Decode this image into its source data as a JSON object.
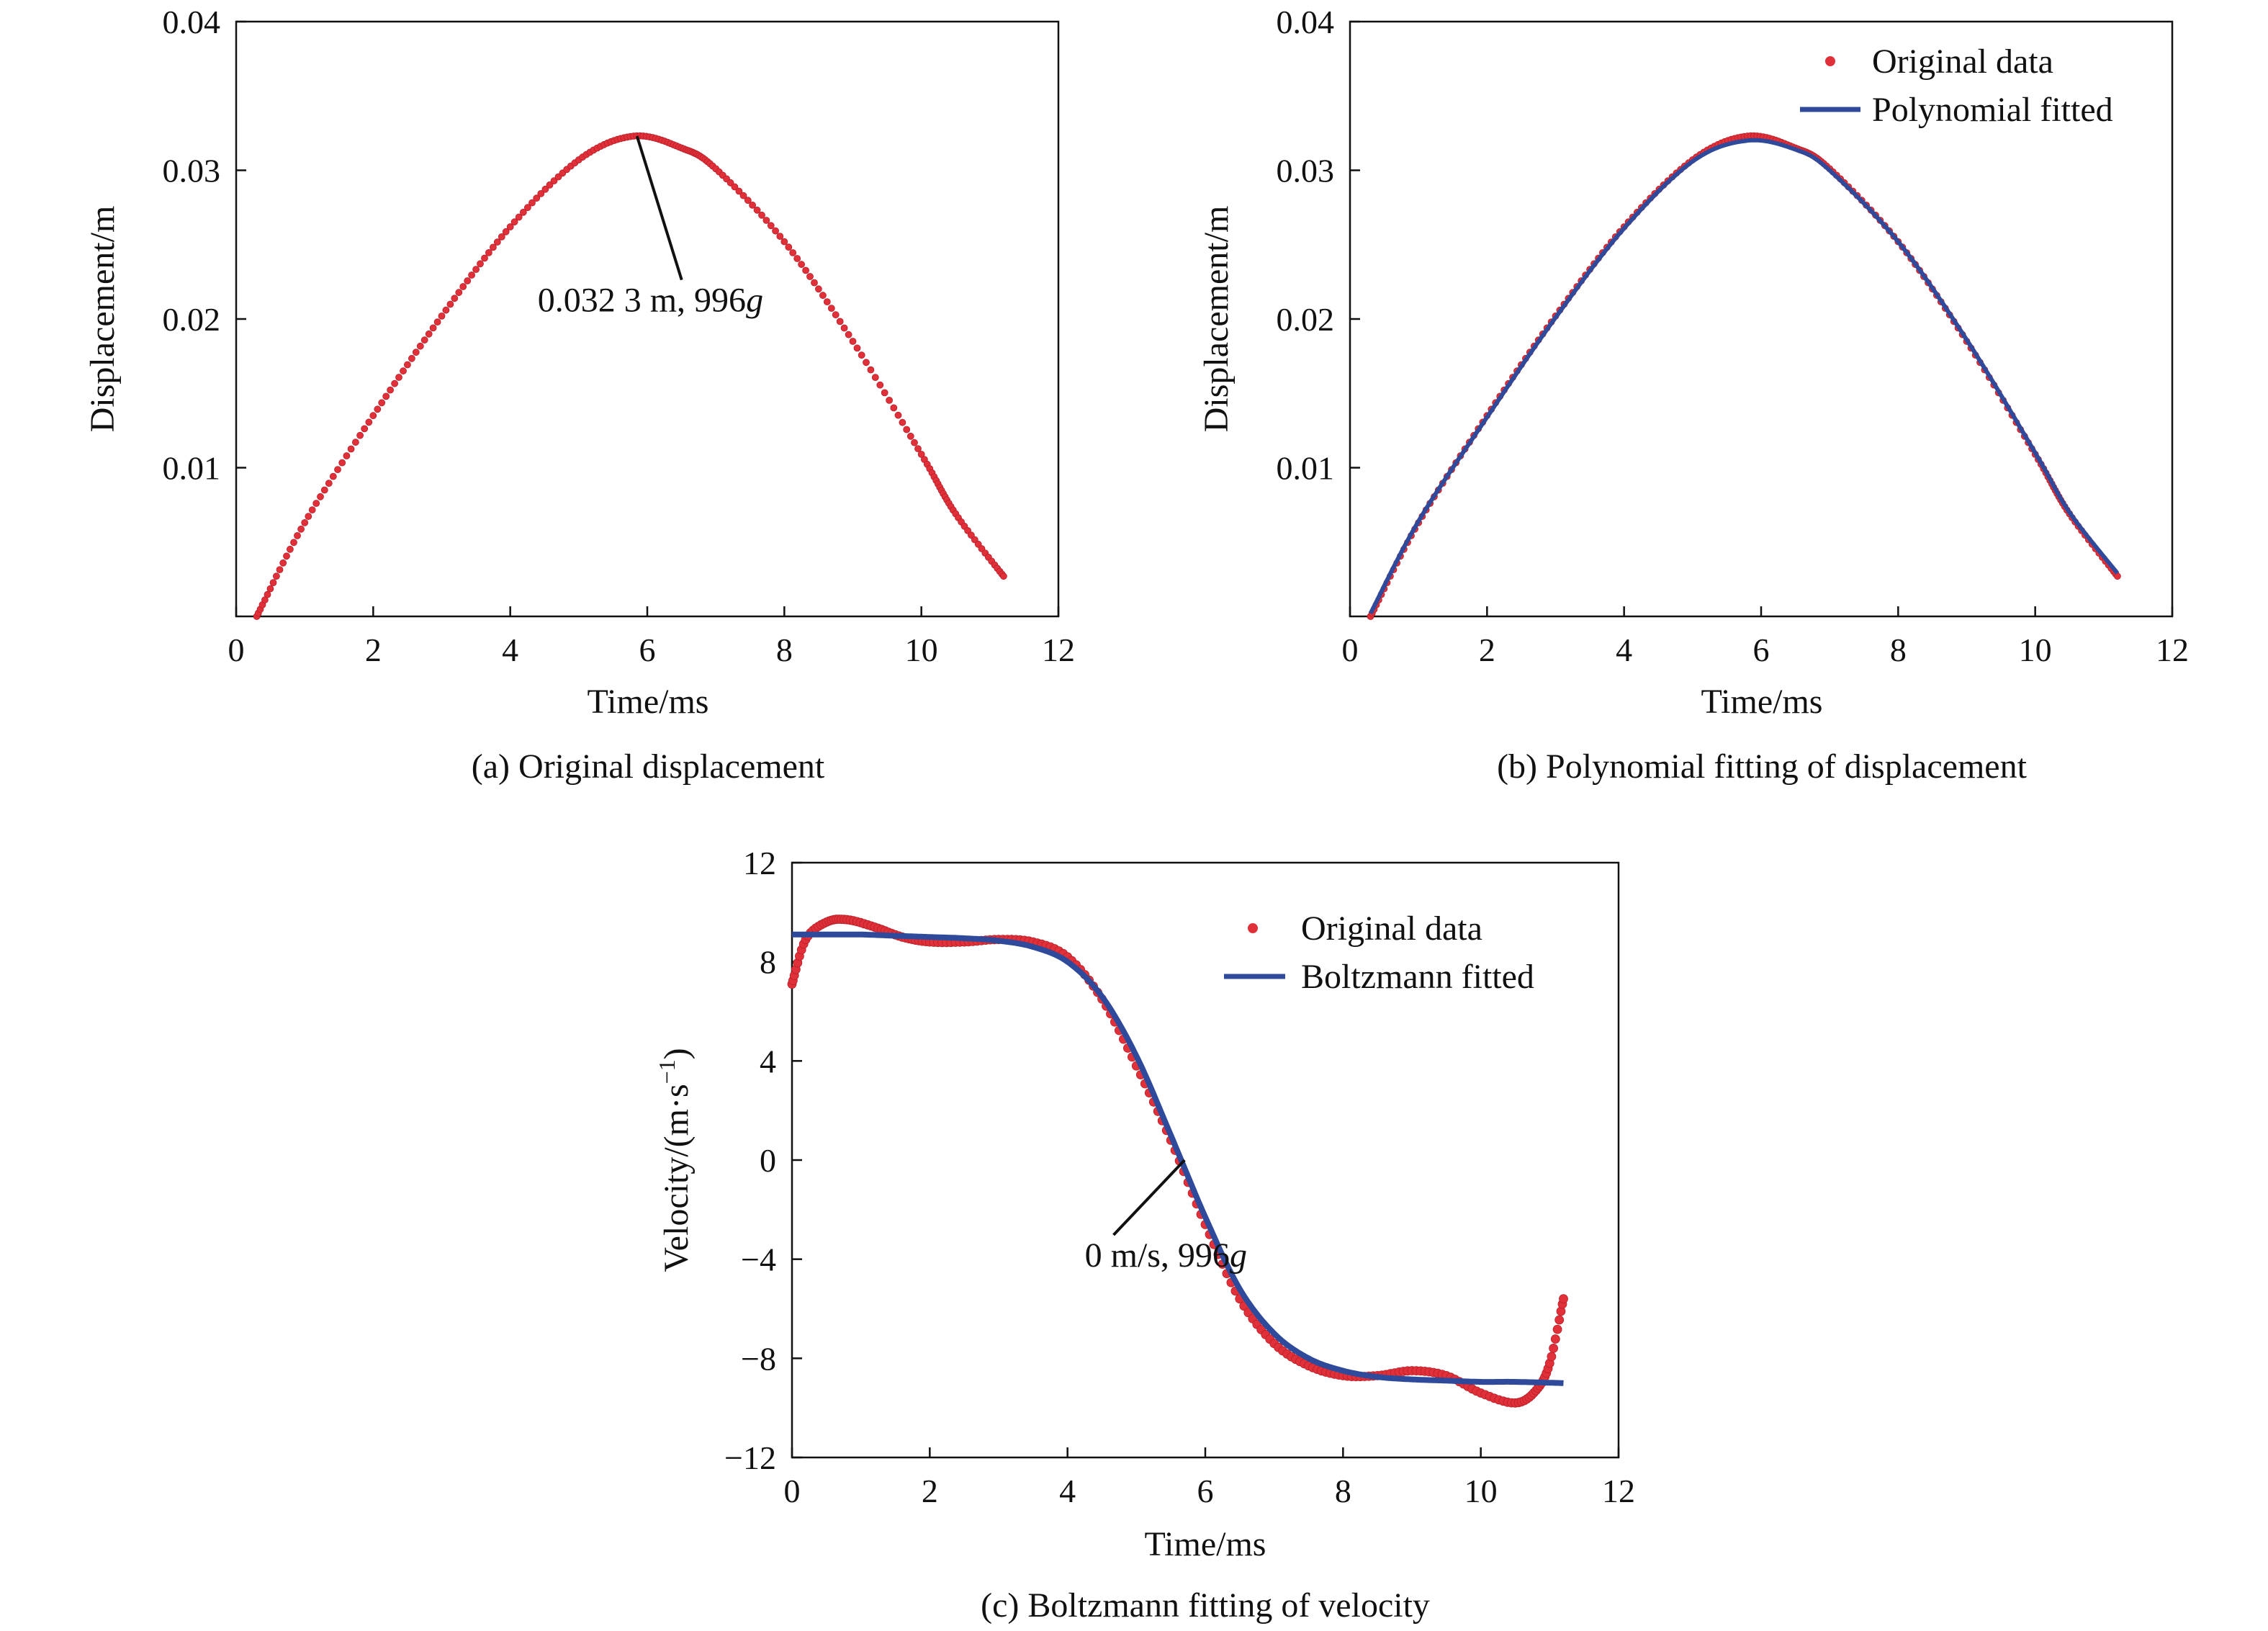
{
  "colors": {
    "original": "#e0303a",
    "fitted": "#2f4a9a",
    "axis": "#111111"
  },
  "chart_data": [
    {
      "id": "a",
      "type": "scatter",
      "caption": "(a) Original displacement",
      "xlabel": "Time/ms",
      "ylabel": "Displacement/m",
      "xlim": [
        0,
        12
      ],
      "ylim": [
        0,
        0.04
      ],
      "xticks": [
        "0",
        "2",
        "4",
        "6",
        "8",
        "10",
        "12"
      ],
      "xtick_values": [
        0,
        2,
        4,
        6,
        8,
        10,
        12
      ],
      "yticks": [
        "0.01",
        "0.02",
        "0.03",
        "0.04"
      ],
      "ytick_values": [
        0.01,
        0.02,
        0.03,
        0.04
      ],
      "grid": false,
      "series": [
        {
          "name": "",
          "x": [
            0.3,
            1,
            2,
            3,
            4,
            5,
            5.8,
            6.5,
            7,
            8,
            9,
            10,
            10.5,
            11.2
          ],
          "y": [
            0,
            0.0063,
            0.0135,
            0.0202,
            0.0262,
            0.0307,
            0.0323,
            0.0315,
            0.0301,
            0.0252,
            0.0185,
            0.0109,
            0.0069,
            0.0027
          ]
        }
      ],
      "annotation": {
        "text": "0.032 3 m, 996",
        "italic": "g",
        "point": [
          5.85,
          0.0323
        ],
        "text_at": [
          4.4,
          0.0205
        ]
      }
    },
    {
      "id": "b",
      "type": "line",
      "caption": "(b) Polynomial fitting of displacement",
      "xlabel": "Time/ms",
      "ylabel": "Displacement/m",
      "xlim": [
        0,
        12
      ],
      "ylim": [
        0,
        0.04
      ],
      "xticks": [
        "0",
        "2",
        "4",
        "6",
        "8",
        "10",
        "12"
      ],
      "xtick_values": [
        0,
        2,
        4,
        6,
        8,
        10,
        12
      ],
      "yticks": [
        "0.01",
        "0.02",
        "0.03",
        "0.04"
      ],
      "ytick_values": [
        0.01,
        0.02,
        0.03,
        0.04
      ],
      "grid": false,
      "legend_position": "top-right",
      "series": [
        {
          "name": "Original data",
          "x": [
            0.3,
            1,
            2,
            3,
            4,
            5,
            5.8,
            6.5,
            7,
            8,
            9,
            10,
            10.5,
            11.2
          ],
          "y": [
            0,
            0.0063,
            0.0135,
            0.0202,
            0.0262,
            0.0307,
            0.0323,
            0.0315,
            0.0301,
            0.0252,
            0.0185,
            0.0109,
            0.0069,
            0.0027
          ]
        },
        {
          "name": "Polynomial fitted",
          "x": [
            0.3,
            1,
            2,
            3,
            4,
            5,
            5.8,
            6.5,
            7,
            8,
            9,
            10,
            10.5,
            11.2
          ],
          "y": [
            0.0002,
            0.0064,
            0.0134,
            0.0201,
            0.0261,
            0.0306,
            0.032,
            0.0314,
            0.03,
            0.0252,
            0.0186,
            0.011,
            0.007,
            0.0029
          ]
        }
      ]
    },
    {
      "id": "c",
      "type": "line",
      "caption": "(c) Boltzmann fitting of velocity",
      "xlabel": "Time/ms",
      "ylabel": "Velocity/(m·s",
      "ylabel_sup": "−1",
      "ylabel_end": ")",
      "xlim": [
        0,
        12
      ],
      "ylim": [
        -12,
        12
      ],
      "xticks": [
        "0",
        "2",
        "4",
        "6",
        "8",
        "10",
        "12"
      ],
      "xtick_values": [
        0,
        2,
        4,
        6,
        8,
        10,
        12
      ],
      "yticks": [
        "−12",
        "−8",
        "−4",
        "0",
        "4",
        "8",
        "12"
      ],
      "ytick_values": [
        -12,
        -8,
        -4,
        0,
        4,
        8,
        12
      ],
      "grid": false,
      "legend_position": "top-right",
      "series": [
        {
          "name": "Original data",
          "x": [
            0,
            0.2,
            0.5,
            0.8,
            1.2,
            1.6,
            2.0,
            2.5,
            3.0,
            3.5,
            4.0,
            4.5,
            5.0,
            5.5,
            6.0,
            6.5,
            7.0,
            7.5,
            8.0,
            8.5,
            9.0,
            9.5,
            10.0,
            10.5,
            10.8,
            11.0,
            11.2
          ],
          "y": [
            7.1,
            8.9,
            9.6,
            9.7,
            9.4,
            9.0,
            8.8,
            8.8,
            8.9,
            8.8,
            8.2,
            6.5,
            3.8,
            0.8,
            -2.6,
            -5.6,
            -7.4,
            -8.3,
            -8.7,
            -8.7,
            -8.5,
            -8.7,
            -9.4,
            -9.8,
            -9.3,
            -8.2,
            -5.6
          ]
        },
        {
          "name": "Boltzmann fitted",
          "x": [
            0,
            0.5,
            1,
            1.5,
            2,
            2.5,
            3,
            3.5,
            4,
            4.5,
            5,
            5.5,
            6,
            6.5,
            7,
            7.5,
            8,
            8.5,
            9,
            9.5,
            10,
            10.5,
            11.2
          ],
          "y": [
            9.1,
            9.1,
            9.1,
            9.05,
            9.0,
            8.95,
            8.85,
            8.6,
            8.0,
            6.6,
            4.2,
            1.0,
            -2.3,
            -5.2,
            -7.0,
            -8.0,
            -8.5,
            -8.75,
            -8.85,
            -8.9,
            -8.95,
            -8.95,
            -9.0
          ]
        }
      ],
      "annotation": {
        "text": "0 m/s, 996",
        "italic": "g",
        "point": [
          5.7,
          0
        ],
        "text_at": [
          4.25,
          -4.3
        ]
      }
    }
  ]
}
